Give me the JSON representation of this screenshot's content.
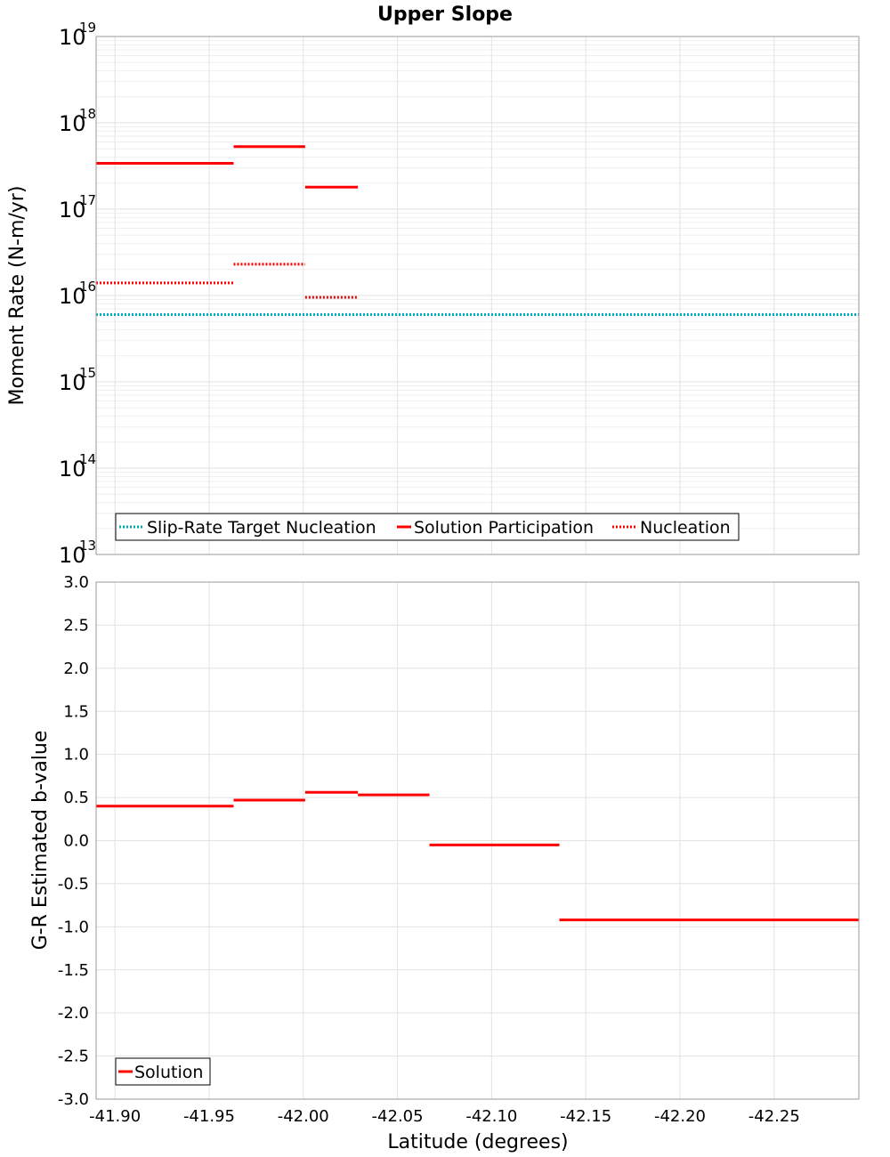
{
  "chart_data": [
    {
      "type": "line",
      "title": "Upper Slope",
      "xlabel": "",
      "ylabel": "Moment Rate (N-m/yr)",
      "yscale": "log",
      "ylim": [
        10000000000000.0,
        1e+19
      ],
      "xlim": [
        -41.89,
        -42.295
      ],
      "x_reversed": true,
      "grid": true,
      "legend_position": "bottom-left",
      "y_tick_exponents": [
        "13",
        "14",
        "15",
        "16",
        "17",
        "18",
        "19"
      ],
      "series": [
        {
          "name": "Slip-Rate Target Nucleation",
          "color": "#00aabb",
          "style": "dotted",
          "segments": [
            {
              "x0": -41.89,
              "x1": -42.295,
              "y": 6000000000000000.0
            }
          ]
        },
        {
          "name": "Solution Participation",
          "color": "#ff0000",
          "style": "solid",
          "segments": [
            {
              "x0": -41.89,
              "x1": -41.963,
              "y": 3.4e+17
            },
            {
              "x0": -41.963,
              "x1": -42.001,
              "y": 5.3e+17
            },
            {
              "x0": -42.001,
              "x1": -42.029,
              "y": 1.8e+17
            }
          ]
        },
        {
          "name": "Nucleation",
          "color": "#ff0000",
          "style": "dotted",
          "segments": [
            {
              "x0": -41.89,
              "x1": -41.963,
              "y": 1.4e+16
            },
            {
              "x0": -41.963,
              "x1": -42.001,
              "y": 2.3e+16
            },
            {
              "x0": -42.001,
              "x1": -42.029,
              "y": 9500000000000000.0
            }
          ]
        }
      ]
    },
    {
      "type": "line",
      "title": "",
      "xlabel": "Latitude (degrees)",
      "ylabel": "G-R Estimated b-value",
      "ylim": [
        -3.0,
        3.0
      ],
      "xlim": [
        -41.89,
        -42.295
      ],
      "x_reversed": true,
      "grid": true,
      "legend_position": "bottom-left",
      "y_ticks": [
        "-3.0",
        "-2.5",
        "-2.0",
        "-1.5",
        "-1.0",
        "-0.5",
        "0.0",
        "0.5",
        "1.0",
        "1.5",
        "2.0",
        "2.5",
        "3.0"
      ],
      "x_ticks": [
        "-41.90",
        "-41.95",
        "-42.00",
        "-42.05",
        "-42.10",
        "-42.15",
        "-42.20",
        "-42.25"
      ],
      "series": [
        {
          "name": "Solution",
          "color": "#ff0000",
          "style": "solid",
          "segments": [
            {
              "x0": -41.89,
              "x1": -41.963,
              "y": 0.4
            },
            {
              "x0": -41.963,
              "x1": -42.001,
              "y": 0.47
            },
            {
              "x0": -42.001,
              "x1": -42.029,
              "y": 0.56
            },
            {
              "x0": -42.029,
              "x1": -42.067,
              "y": 0.53
            },
            {
              "x0": -42.067,
              "x1": -42.136,
              "y": -0.05
            },
            {
              "x0": -42.136,
              "x1": -42.295,
              "y": -0.92
            }
          ]
        }
      ]
    }
  ]
}
